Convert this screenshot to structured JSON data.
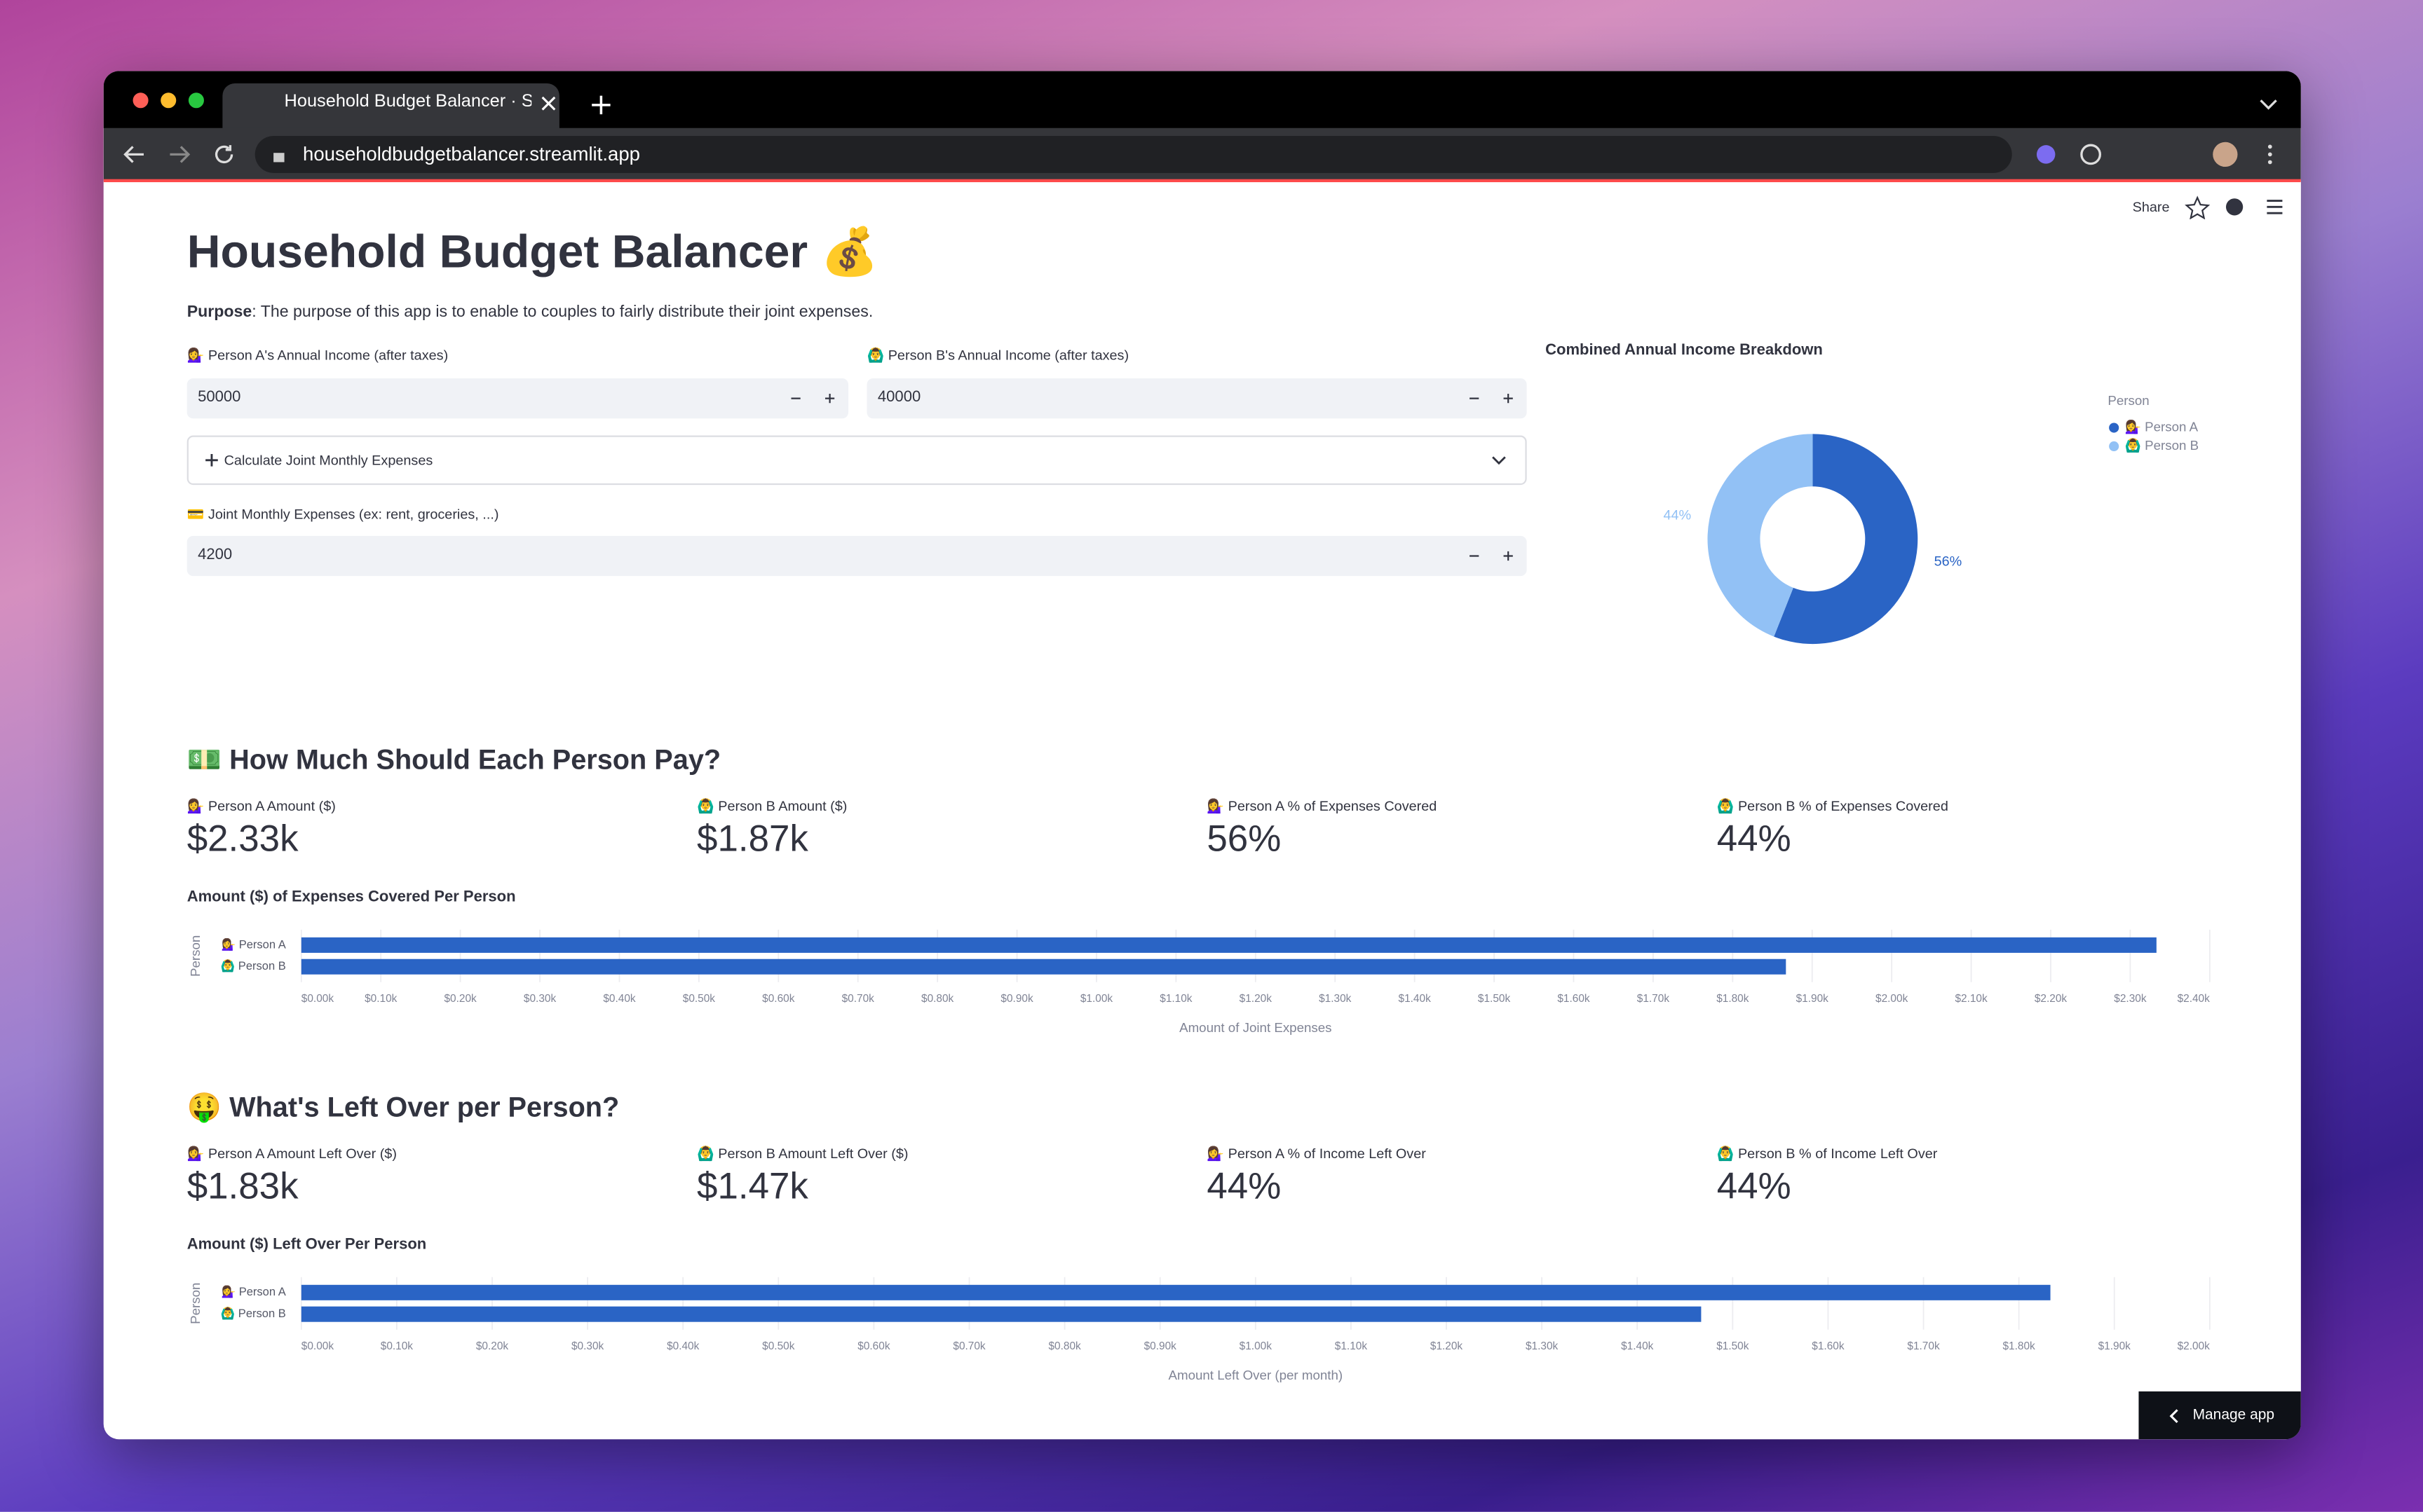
{
  "browser": {
    "tab_title": "Household Budget Balancer · S",
    "url": "householdbudgetbalancer.streamlit.app"
  },
  "app_toolbar": {
    "share": "Share",
    "manage_app": "Manage app"
  },
  "header": {
    "title": "Household Budget Balancer 💰",
    "purpose_label": "Purpose",
    "purpose_text": ": The purpose of this app is to enable to couples to fairly distribute their joint expenses."
  },
  "inputs": {
    "person_a_income": {
      "label": "💁‍♀️ Person A's Annual Income (after taxes)",
      "value": 50000
    },
    "person_b_income": {
      "label": "🙆‍♂️ Person B's Annual Income (after taxes)",
      "value": 40000
    },
    "expander": "Calculate Joint Monthly Expenses",
    "joint_expenses": {
      "label": "💳 Joint Monthly Expenses (ex: rent, groceries, ...)",
      "value": 4200
    }
  },
  "sections": [
    {
      "heading": "💵 How Much Should Each Person Pay?",
      "metrics": [
        {
          "label": "💁‍♀️ Person A Amount ($)",
          "value": "$2.33k"
        },
        {
          "label": "🙆‍♂️ Person B Amount ($)",
          "value": "$1.87k"
        },
        {
          "label": "💁‍♀️ Person A % of Expenses Covered",
          "value": "56%"
        },
        {
          "label": "🙆‍♂️ Person B % of Expenses Covered",
          "value": "44%"
        }
      ]
    },
    {
      "heading": "🤑 What's Left Over per Person?",
      "metrics": [
        {
          "label": "💁‍♀️ Person A Amount Left Over ($)",
          "value": "$1.83k"
        },
        {
          "label": "🙆‍♂️ Person B Amount Left Over ($)",
          "value": "$1.47k"
        },
        {
          "label": "💁‍♀️ Person A % of Income Left Over",
          "value": "44%"
        },
        {
          "label": "🙆‍♂️ Person B % of Income Left Over",
          "value": "44%"
        }
      ]
    }
  ],
  "chart_data": [
    {
      "type": "pie",
      "title": "Combined Annual Income Breakdown",
      "legend_title": "Person",
      "categories": [
        "💁‍♀️ Person A",
        "🙆‍♂️ Person B"
      ],
      "values": [
        56,
        44
      ],
      "value_labels": [
        "56%",
        "44%"
      ],
      "colors": [
        "#2a64c5",
        "#92c1f5"
      ],
      "donut": true,
      "legend": "right"
    },
    {
      "type": "bar",
      "orientation": "horizontal",
      "title": "Amount ($) of Expenses Covered Per Person",
      "categories": [
        "💁‍♀️ Person A",
        "🙆‍♂️ Person B"
      ],
      "values": [
        2333,
        1867
      ],
      "color": "#2a64c5",
      "xlabel": "Amount of Joint Expenses",
      "ylabel": "Person",
      "xlim": [
        0,
        2400
      ],
      "grid": true,
      "xticks": [
        {
          "value": 0,
          "label": "$0.00k"
        },
        {
          "value": 100,
          "label": "$0.10k"
        },
        {
          "value": 200,
          "label": "$0.20k"
        },
        {
          "value": 300,
          "label": "$0.30k"
        },
        {
          "value": 400,
          "label": "$0.40k"
        },
        {
          "value": 500,
          "label": "$0.50k"
        },
        {
          "value": 600,
          "label": "$0.60k"
        },
        {
          "value": 700,
          "label": "$0.70k"
        },
        {
          "value": 800,
          "label": "$0.80k"
        },
        {
          "value": 900,
          "label": "$0.90k"
        },
        {
          "value": 1000,
          "label": "$1.00k"
        },
        {
          "value": 1100,
          "label": "$1.10k"
        },
        {
          "value": 1200,
          "label": "$1.20k"
        },
        {
          "value": 1300,
          "label": "$1.30k"
        },
        {
          "value": 1400,
          "label": "$1.40k"
        },
        {
          "value": 1500,
          "label": "$1.50k"
        },
        {
          "value": 1600,
          "label": "$1.60k"
        },
        {
          "value": 1700,
          "label": "$1.70k"
        },
        {
          "value": 1800,
          "label": "$1.80k"
        },
        {
          "value": 1900,
          "label": "$1.90k"
        },
        {
          "value": 2000,
          "label": "$2.00k"
        },
        {
          "value": 2100,
          "label": "$2.10k"
        },
        {
          "value": 2200,
          "label": "$2.20k"
        },
        {
          "value": 2300,
          "label": "$2.30k"
        },
        {
          "value": 2400,
          "label": "$2.40k"
        }
      ]
    },
    {
      "type": "bar",
      "orientation": "horizontal",
      "title": "Amount ($) Left Over Per Person",
      "categories": [
        "💁‍♀️ Person A",
        "🙆‍♂️ Person B"
      ],
      "values": [
        1833,
        1467
      ],
      "color": "#2a64c5",
      "xlabel": "Amount Left Over (per month)",
      "ylabel": "Person",
      "xlim": [
        0,
        2000
      ],
      "grid": true,
      "xticks": [
        {
          "value": 0,
          "label": "$0.00k"
        },
        {
          "value": 100,
          "label": "$0.10k"
        },
        {
          "value": 200,
          "label": "$0.20k"
        },
        {
          "value": 300,
          "label": "$0.30k"
        },
        {
          "value": 400,
          "label": "$0.40k"
        },
        {
          "value": 500,
          "label": "$0.50k"
        },
        {
          "value": 600,
          "label": "$0.60k"
        },
        {
          "value": 700,
          "label": "$0.70k"
        },
        {
          "value": 800,
          "label": "$0.80k"
        },
        {
          "value": 900,
          "label": "$0.90k"
        },
        {
          "value": 1000,
          "label": "$1.00k"
        },
        {
          "value": 1100,
          "label": "$1.10k"
        },
        {
          "value": 1200,
          "label": "$1.20k"
        },
        {
          "value": 1300,
          "label": "$1.30k"
        },
        {
          "value": 1400,
          "label": "$1.40k"
        },
        {
          "value": 1500,
          "label": "$1.50k"
        },
        {
          "value": 1600,
          "label": "$1.60k"
        },
        {
          "value": 1700,
          "label": "$1.70k"
        },
        {
          "value": 1800,
          "label": "$1.80k"
        },
        {
          "value": 1900,
          "label": "$1.90k"
        },
        {
          "value": 2000,
          "label": "$2.00k"
        }
      ]
    }
  ]
}
